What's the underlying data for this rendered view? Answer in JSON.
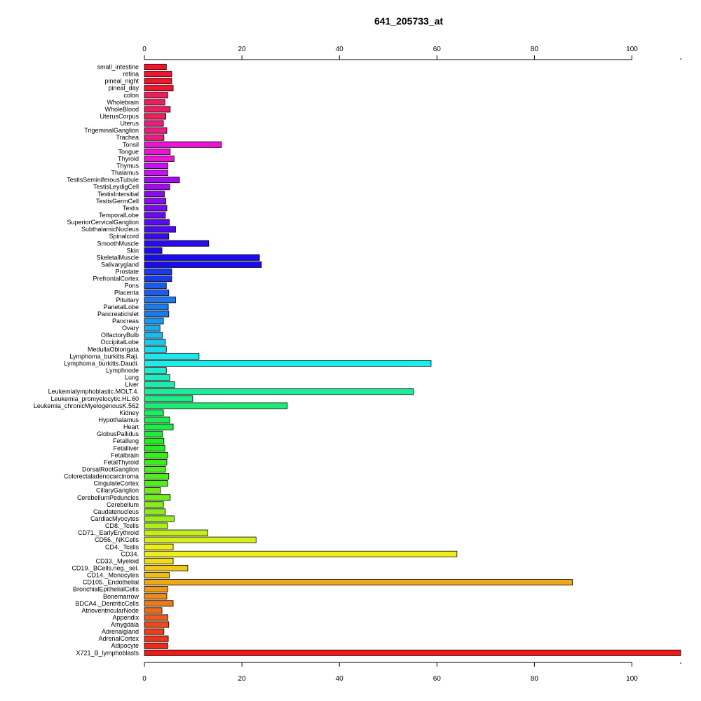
{
  "chart_data": {
    "type": "bar",
    "orientation": "horizontal",
    "title": "641_205733_at",
    "xlabel": "",
    "ylabel": "",
    "xlim": [
      0,
      110
    ],
    "x_ticks": [
      0,
      20,
      40,
      60,
      80,
      100
    ],
    "grid": false,
    "axes": "top-and-bottom",
    "categories": [
      "small_intestine",
      "retina",
      "pineal_night",
      "pineal_day",
      "colon",
      "Wholebrain",
      "WholeBlood",
      "UterusCorpus",
      "Uterus",
      "TrigeminalGanglion",
      "Trachea",
      "Tonsil",
      "Tongue",
      "Thyroid",
      "Thymus",
      "Thalamus",
      "TestisSeminiferousTubule",
      "TestisLeydigCell",
      "TestisIntersitial",
      "TestisGermCell",
      "Testis",
      "TemporalLobe",
      "SuperiorCervicalGanglion",
      "SubthalamicNucleus",
      "Spinalcord",
      "SmoothMuscle",
      "Skin",
      "SkeletalMuscle",
      "Salivarygland",
      "Prostate",
      "PrefrontalCortex",
      "Pons",
      "Placenta",
      "Pituitary",
      "ParietalLobe",
      "PancreaticIslet",
      "Pancreas",
      "Ovary",
      "OlfactoryBulb",
      "OccipitalLobe",
      "MedullaOblongata",
      "Lymphoma_burkitts.Raji.",
      "Lymphoma_burkitts.Daudi.",
      "Lymphnode",
      "Lung",
      "Liver",
      "Leukemialymphoblastic.MOLT.4.",
      "Leukemia_promyelocytic.HL.60",
      "Leukemia_chronicMyelogenousK.562",
      "Kidney",
      "Hypothalamus",
      "Heart",
      "GlobusPallidus",
      "Fetallung",
      "Fetalliver",
      "Fetalbrain",
      "FetalThyroid",
      "DorsalRootGanglion",
      "Colorectaladenocarcinoma",
      "CingulateCortex",
      "CiliaryGanglion",
      "CerebellumPeduncles",
      "Cerebellum",
      "Caudatenucleus",
      "CardiacMyocytes",
      "CD8._Tcells",
      "CD71._EarlyErythroid",
      "CD56._NKCells",
      "CD4._Tcells",
      "CD34.",
      "CD33._Myeloid",
      "CD19._BCells.neg._sel.",
      "CD14._Monocytes",
      "CD105._Endothelial",
      "BronchialEpithelialCells",
      "Bonemarrow",
      "BDCA4._DentriticCells",
      "AtrioventricularNode",
      "Appendix",
      "Amygdala",
      "Adrenalgland",
      "AdrenalCortex",
      "Adipocyte",
      "X721_B_lymphoblasts"
    ],
    "values": [
      4.5,
      5.6,
      5.6,
      5.9,
      4.8,
      4.2,
      5.3,
      4.4,
      3.9,
      4.6,
      4.0,
      15.8,
      5.3,
      6.1,
      4.8,
      4.8,
      7.2,
      5.2,
      4.1,
      4.4,
      4.6,
      4.3,
      5.1,
      6.4,
      5.0,
      13.2,
      3.6,
      23.6,
      24.0,
      5.6,
      5.6,
      4.5,
      5.0,
      6.4,
      4.9,
      5.0,
      3.9,
      3.2,
      3.7,
      4.3,
      4.5,
      11.2,
      58.8,
      4.5,
      5.2,
      6.2,
      55.2,
      9.9,
      29.3,
      3.9,
      5.2,
      5.9,
      3.7,
      4.0,
      4.2,
      4.8,
      4.6,
      4.3,
      5.0,
      4.8,
      3.3,
      5.3,
      3.9,
      4.3,
      6.1,
      4.7,
      13.0,
      22.9,
      5.9,
      64.1,
      5.9,
      8.9,
      5.1,
      87.8,
      4.8,
      4.6,
      5.9,
      3.6,
      4.8,
      5.0,
      4.0,
      4.9,
      4.8,
      110
    ],
    "colors": [
      "#f0152d",
      "#f0152d",
      "#f0152d",
      "#f0152d",
      "#ef1d5e",
      "#ef1d5e",
      "#ef1d5e",
      "#ef1d5e",
      "#ee1a7d",
      "#ee1a7d",
      "#ee1a7d",
      "#ee11d6",
      "#ee11d6",
      "#ee11d6",
      "#c612ee",
      "#c612ee",
      "#a10bee",
      "#a10bee",
      "#8a0bee",
      "#8a0bee",
      "#7a0bee",
      "#6a0bee",
      "#5a0bee",
      "#4a0bee",
      "#3a0bee",
      "#2a0bee",
      "#1a0bee",
      "#1a0bee",
      "#1a0bee",
      "#1a3aee",
      "#1a3aee",
      "#1a5aee",
      "#1a5aee",
      "#1a7aee",
      "#1a7aee",
      "#1a7aee",
      "#1a9aee",
      "#1aaaee",
      "#1abaee",
      "#1acaee",
      "#1adaee",
      "#1ae8ee",
      "#1aeeea",
      "#1aeed2",
      "#1aeebe",
      "#1aeeaa",
      "#1aee9a",
      "#1aee86",
      "#1aee72",
      "#1aee62",
      "#1aee52",
      "#1aee44",
      "#1aee36",
      "#22ee1a",
      "#22ee1a",
      "#3aee1a",
      "#3aee1a",
      "#50ee1a",
      "#50ee1a",
      "#50ee1a",
      "#70ee1a",
      "#70ee1a",
      "#88ee1a",
      "#88ee1a",
      "#9aee1a",
      "#b0ee1a",
      "#c4ee1a",
      "#d8ee1a",
      "#eeee1a",
      "#eeee1a",
      "#eedc1a",
      "#eec81a",
      "#eebc1a",
      "#eea81a",
      "#ee981a",
      "#ee8a1a",
      "#ee7a1a",
      "#ee6a1a",
      "#ee5a1a",
      "#ee4a1a",
      "#ee3e1a",
      "#ee341a",
      "#ee2a1a",
      "#ee1a1a"
    ]
  }
}
